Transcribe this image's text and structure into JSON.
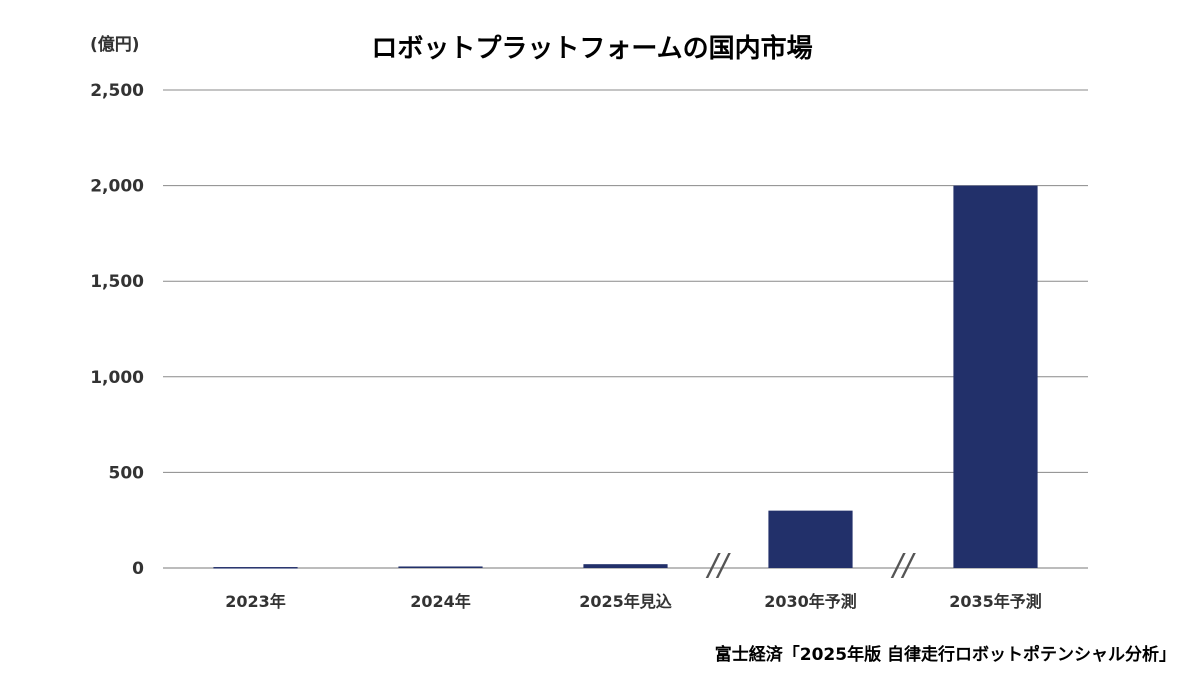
{
  "chart_data": {
    "type": "bar",
    "title": "ロボットプラットフォームの国内市場",
    "unit_label": "(億円)",
    "categories": [
      "2023年",
      "2024年",
      "2025年見込",
      "2030年予測",
      "2035年予測"
    ],
    "values": [
      5,
      8,
      20,
      300,
      2000
    ],
    "ylim": [
      0,
      2500
    ],
    "yticks": [
      0,
      500,
      1000,
      1500,
      2000,
      2500
    ],
    "ytick_labels": [
      "0",
      "500",
      "1,000",
      "1,500",
      "2,000",
      "2,500"
    ],
    "axis_breaks": [
      "//",
      "//"
    ],
    "grid": true,
    "bar_color": "#22306A"
  },
  "source": "富士経済「2025年版 自律走行ロボットポテンシャル分析」"
}
